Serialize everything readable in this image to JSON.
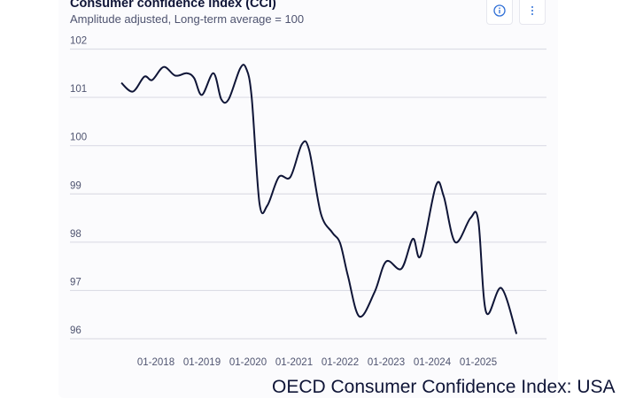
{
  "header": {
    "title": "Consumer confidence index (CCI)",
    "subtitle": "Amplitude adjusted, Long-term average = 100",
    "info_icon": "info-circle-icon",
    "more_icon": "vertical-ellipsis-icon"
  },
  "footer_title": "OECD Consumer Confidence Index: USA",
  "colors": {
    "line": "#0f1537",
    "grid": "#dcdde6",
    "accent": "#2f6fd6"
  },
  "chart_data": {
    "type": "line",
    "title": "Consumer confidence index (CCI)",
    "subtitle": "Amplitude adjusted, Long-term average = 100",
    "xlabel": "",
    "ylabel": "",
    "ylim": [
      96,
      102
    ],
    "xlim": [
      2016.25,
      2026.6
    ],
    "y_ticks": [
      "102",
      "101",
      "100",
      "99",
      "98",
      "97",
      "96"
    ],
    "x_ticks": [
      {
        "label": "01-2018",
        "value": 2018.0
      },
      {
        "label": "01-2019",
        "value": 2019.0
      },
      {
        "label": "01-2020",
        "value": 2020.0
      },
      {
        "label": "01-2021",
        "value": 2021.0
      },
      {
        "label": "01-2022",
        "value": 2022.0
      },
      {
        "label": "01-2023",
        "value": 2023.0
      },
      {
        "label": "01-2024",
        "value": 2024.0
      },
      {
        "label": "01-2025",
        "value": 2025.0
      }
    ],
    "grid": true,
    "series": [
      {
        "name": "USA",
        "x": [
          2017.25,
          2017.5,
          2017.75,
          2017.92,
          2018.17,
          2018.42,
          2018.67,
          2018.83,
          2019.0,
          2019.25,
          2019.42,
          2019.58,
          2019.83,
          2019.96,
          2020.08,
          2020.25,
          2020.42,
          2020.67,
          2020.92,
          2021.17,
          2021.33,
          2021.58,
          2021.83,
          2022.0,
          2022.17,
          2022.42,
          2022.75,
          2023.0,
          2023.33,
          2023.58,
          2023.75,
          2024.08,
          2024.25,
          2024.5,
          2024.83,
          2025.0,
          2025.17,
          2025.5,
          2025.83
        ],
        "values": [
          101.3,
          101.12,
          101.43,
          101.36,
          101.63,
          101.45,
          101.5,
          101.4,
          101.05,
          101.5,
          100.96,
          100.96,
          101.6,
          101.6,
          101.0,
          98.8,
          98.76,
          99.35,
          99.35,
          100.03,
          99.9,
          98.6,
          98.2,
          97.98,
          97.3,
          96.46,
          96.97,
          97.6,
          97.45,
          98.07,
          97.72,
          99.17,
          98.95,
          98.0,
          98.5,
          98.45,
          96.55,
          97.05,
          96.1
        ]
      }
    ]
  }
}
